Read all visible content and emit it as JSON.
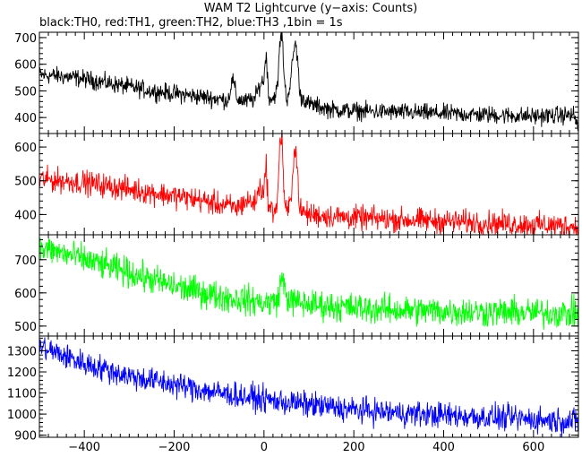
{
  "chart_data": {
    "type": "line",
    "title": "WAM T2 Lightcurve (y−axis: Counts)",
    "subtitle": "black:TH0, red:TH1, green:TH2, blue:TH3 ,1bin = 1s",
    "xlabel": "",
    "ylabel": "",
    "xlim": [
      -500,
      700
    ],
    "x_ticks": [
      -400,
      -200,
      0,
      200,
      400,
      600
    ],
    "x_tick_labels": [
      "−400",
      "−200",
      "0",
      "200",
      "400",
      "600"
    ],
    "grid": false,
    "legend": "none",
    "panels": [
      {
        "name": "TH0",
        "color": "#000000",
        "ylim": [
          340,
          720
        ],
        "y_ticks": [
          400,
          500,
          600,
          700
        ],
        "y_tick_labels": [
          "400",
          "500",
          "600",
          "700"
        ],
        "x": [
          -500,
          -450,
          -400,
          -350,
          -300,
          -250,
          -200,
          -150,
          -100,
          -80,
          -70,
          -60,
          -40,
          -20,
          -10,
          0,
          5,
          10,
          20,
          30,
          35,
          40,
          45,
          50,
          60,
          65,
          70,
          75,
          80,
          90,
          100,
          150,
          200,
          300,
          400,
          500,
          600,
          690,
          700
        ],
        "y": [
          560,
          555,
          545,
          530,
          515,
          500,
          490,
          480,
          470,
          465,
          545,
          470,
          460,
          470,
          520,
          545,
          650,
          480,
          470,
          510,
          670,
          720,
          560,
          460,
          540,
          640,
          680,
          620,
          480,
          470,
          450,
          430,
          425,
          420,
          415,
          410,
          405,
          410,
          360
        ],
        "noise": 30
      },
      {
        "name": "TH1",
        "color": "#ff0000",
        "ylim": [
          340,
          640
        ],
        "y_ticks": [
          400,
          500,
          600
        ],
        "y_tick_labels": [
          "400",
          "500",
          "600"
        ],
        "x": [
          -500,
          -450,
          -400,
          -350,
          -300,
          -250,
          -200,
          -150,
          -100,
          -60,
          -40,
          -20,
          -10,
          0,
          5,
          10,
          20,
          30,
          35,
          40,
          45,
          50,
          60,
          65,
          70,
          75,
          80,
          100,
          150,
          200,
          300,
          400,
          500,
          600,
          700
        ],
        "y": [
          505,
          500,
          495,
          485,
          475,
          465,
          455,
          445,
          430,
          420,
          440,
          435,
          480,
          470,
          550,
          420,
          410,
          430,
          610,
          635,
          450,
          400,
          440,
          560,
          600,
          520,
          410,
          400,
          395,
          390,
          385,
          380,
          375,
          370,
          365
        ],
        "noise": 32
      },
      {
        "name": "TH2",
        "color": "#00ff00",
        "ylim": [
          470,
          775
        ],
        "y_ticks": [
          500,
          600,
          700
        ],
        "y_tick_labels": [
          "500",
          "600",
          "700"
        ],
        "x": [
          -500,
          -450,
          -400,
          -350,
          -300,
          -250,
          -200,
          -150,
          -100,
          -50,
          0,
          30,
          40,
          50,
          60,
          100,
          200,
          300,
          400,
          500,
          600,
          700
        ],
        "y": [
          735,
          720,
          700,
          680,
          660,
          640,
          620,
          605,
          590,
          580,
          570,
          575,
          650,
          590,
          575,
          565,
          555,
          548,
          545,
          542,
          540,
          538
        ],
        "noise": 40
      },
      {
        "name": "TH3",
        "color": "#0000ff",
        "ylim": [
          890,
          1370
        ],
        "y_ticks": [
          900,
          1000,
          1100,
          1200,
          1300
        ],
        "y_tick_labels": [
          "900",
          "1000",
          "1100",
          "1200",
          "1300"
        ],
        "x": [
          -500,
          -450,
          -400,
          -350,
          -300,
          -250,
          -200,
          -150,
          -100,
          -50,
          0,
          50,
          100,
          200,
          300,
          400,
          500,
          600,
          700
        ],
        "y": [
          1320,
          1280,
          1240,
          1210,
          1180,
          1160,
          1140,
          1120,
          1100,
          1085,
          1070,
          1055,
          1045,
          1020,
          1005,
          995,
          985,
          975,
          965
        ],
        "noise": 55
      }
    ]
  }
}
